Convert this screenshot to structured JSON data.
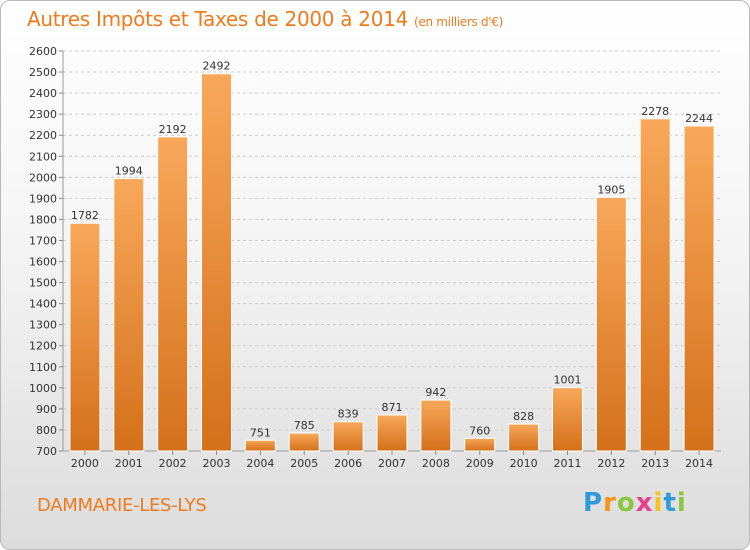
{
  "header": {
    "title": "Autres Impôts et Taxes de 2000 à 2014",
    "subtitle": "(en milliers d'€)"
  },
  "footer": {
    "city": "DAMMARIE-LES-LYS",
    "logo_text": "Proxiti"
  },
  "colors": {
    "accent": "#f07a1c",
    "bar_light": "#f8a85a",
    "bar_dark": "#d4701a"
  },
  "chart_data": {
    "type": "bar",
    "title": "Autres Impôts et Taxes de 2000 à 2014",
    "subtitle": "(en milliers d'€)",
    "categories": [
      "2000",
      "2001",
      "2002",
      "2003",
      "2004",
      "2005",
      "2006",
      "2007",
      "2008",
      "2009",
      "2010",
      "2011",
      "2012",
      "2013",
      "2014"
    ],
    "values": [
      1782,
      1994,
      2192,
      2492,
      751,
      785,
      839,
      871,
      942,
      760,
      828,
      1001,
      1905,
      2278,
      2244
    ],
    "ylim": [
      700,
      2600
    ],
    "yticks": [
      700,
      800,
      900,
      1000,
      1100,
      1200,
      1300,
      1400,
      1500,
      1600,
      1700,
      1800,
      1900,
      2000,
      2100,
      2200,
      2300,
      2400,
      2500,
      2600
    ],
    "grid": true,
    "xlabel": "",
    "ylabel": ""
  }
}
